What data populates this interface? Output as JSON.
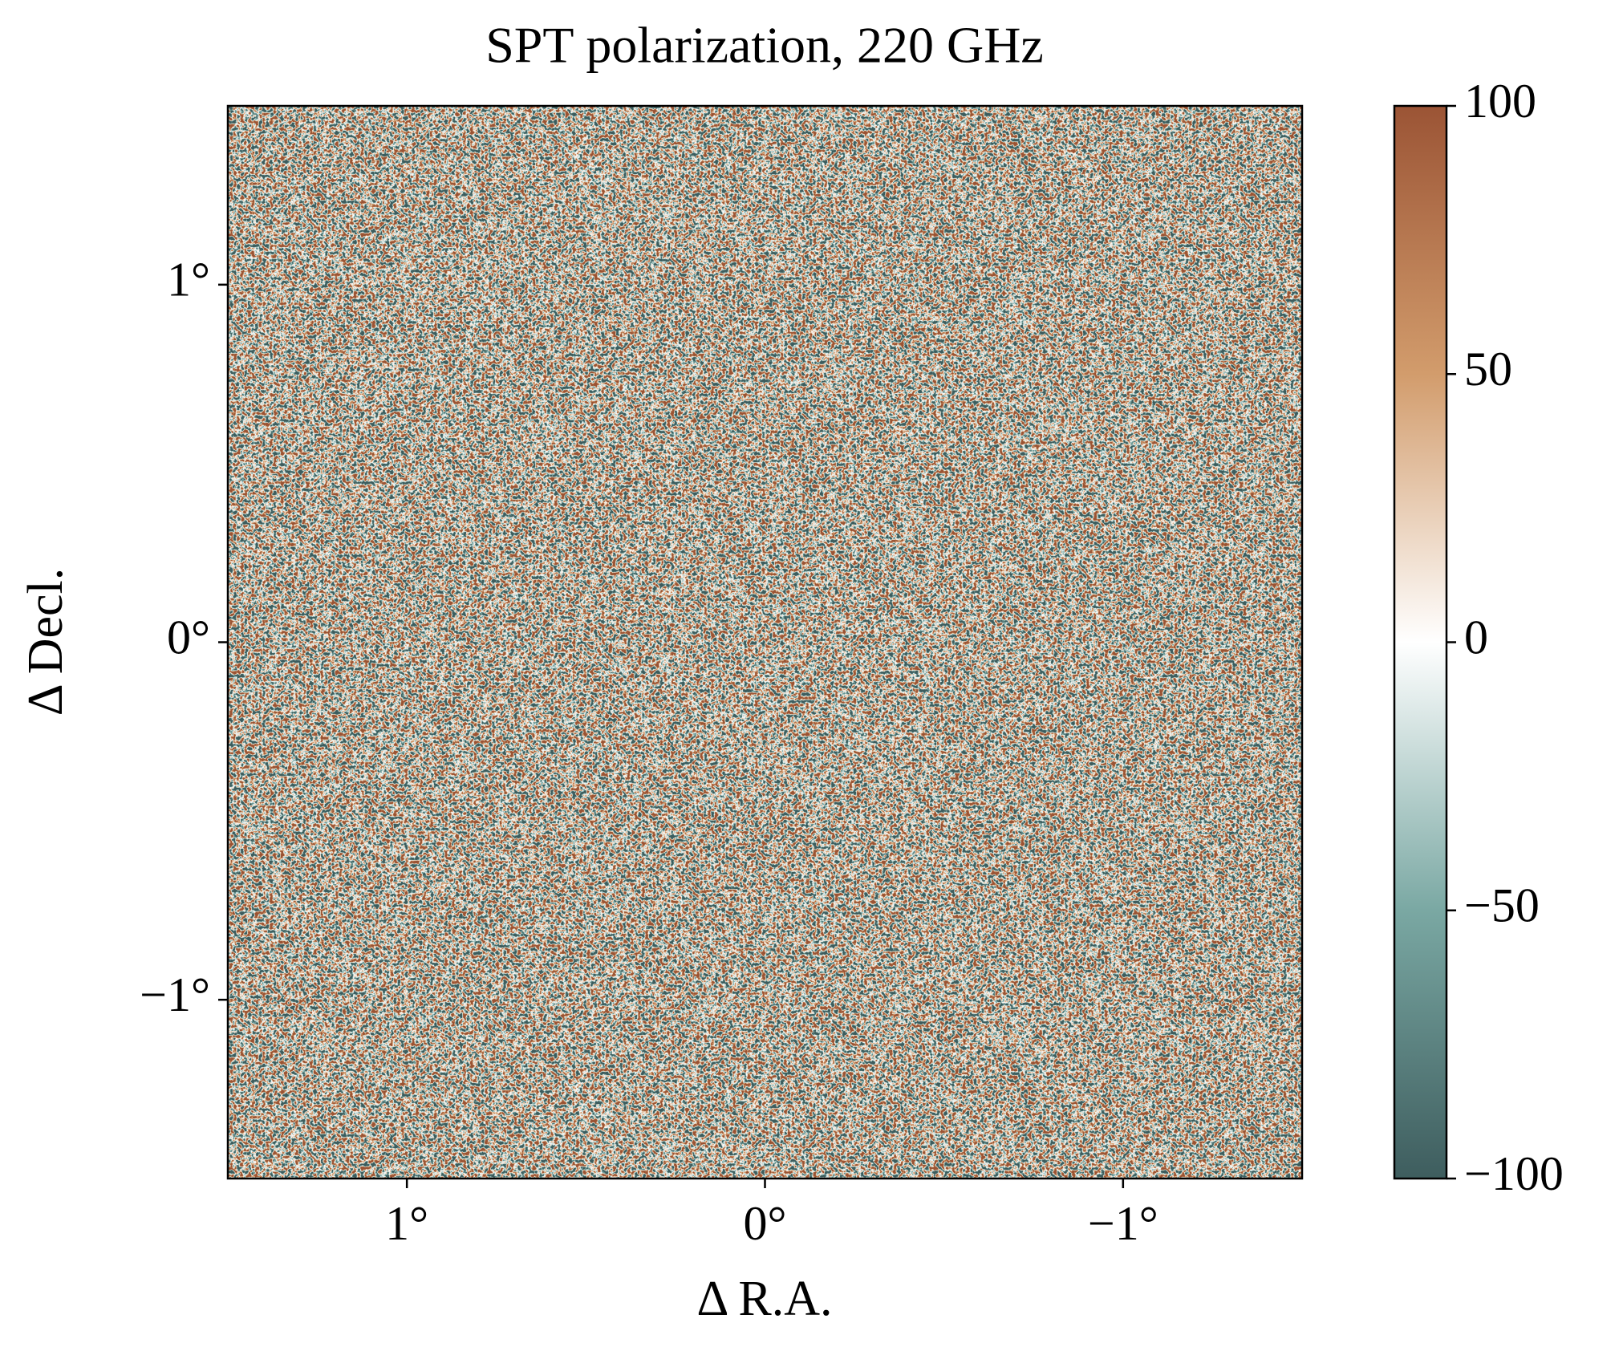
{
  "chart_data": {
    "type": "heatmap",
    "title": "SPT polarization, 220 GHz",
    "xlabel": "Δ R.A.",
    "ylabel": "Δ Decl.",
    "xlim": [
      1.5,
      -1.5
    ],
    "ylim": [
      -1.5,
      1.5
    ],
    "xticks": [
      {
        "value": 1,
        "label": "1°"
      },
      {
        "value": 0,
        "label": "0°"
      },
      {
        "value": -1,
        "label": "−1°"
      }
    ],
    "yticks": [
      {
        "value": -1,
        "label": "−1°"
      },
      {
        "value": 0,
        "label": "0°"
      },
      {
        "value": 1,
        "label": "1°"
      }
    ],
    "colorbar": {
      "lim": [
        -100,
        100
      ],
      "ticks": [
        {
          "value": -100,
          "label": "−100"
        },
        {
          "value": -50,
          "label": "−50"
        },
        0,
        50,
        100
      ],
      "colormap": [
        "#3e5d5e",
        "#7aa8a3",
        "#ffffff",
        "#d29c6c",
        "#9b5435"
      ]
    }
  }
}
